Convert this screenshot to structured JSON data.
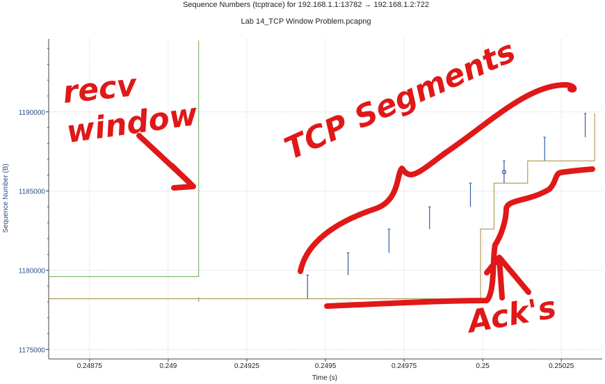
{
  "chart_data": {
    "type": "line",
    "title": "Sequence Numbers (tcptrace) for 192.168.1.1:13782 → 192.168.1.2:722",
    "subtitle": "Lab 14_TCP Window Problem.pcapng",
    "xlabel": "Time (s)",
    "ylabel": "Sequence Number (B)",
    "xlim": [
      0.24862,
      0.25038
    ],
    "ylim": [
      1174400,
      1194600
    ],
    "x_ticks": [
      0.24875,
      0.249,
      0.24925,
      0.2495,
      0.24975,
      0.25,
      0.25025
    ],
    "x_tick_labels": [
      "0.24875",
      "0.249",
      "0.24925",
      "0.2495",
      "0.24975",
      "0.25",
      "0.25025"
    ],
    "y_ticks": [
      1175000,
      1180000,
      1185000,
      1190000
    ],
    "y_tick_labels": [
      "1175000",
      "1180000",
      "1185000",
      "1190000"
    ],
    "grid": true,
    "colors": {
      "segments": "#2f5f9e",
      "receive_window": "#6aa84f",
      "acks": "#a08a3c",
      "annotation": "#e01818"
    },
    "series": [
      {
        "name": "",
        "kind": "segments",
        "points": [
          {
            "x": 0.249443,
            "y0": 1178200,
            "y1": 1179700
          },
          {
            "x": 0.249572,
            "y0": 1179700,
            "y1": 1181100
          },
          {
            "x": 0.249702,
            "y0": 1181100,
            "y1": 1182600
          },
          {
            "x": 0.249831,
            "y0": 1182600,
            "y1": 1184000
          },
          {
            "x": 0.249961,
            "y0": 1184000,
            "y1": 1185500
          },
          {
            "x": 0.250068,
            "y0": 1185500,
            "y1": 1186900
          },
          {
            "x": 0.250197,
            "y0": 1186900,
            "y1": 1188400
          },
          {
            "x": 0.250326,
            "y0": 1188400,
            "y1": 1189900
          }
        ],
        "marker": {
          "x": 0.250068,
          "y": 1186200
        }
      },
      {
        "name": "",
        "kind": "receive_window",
        "steps": [
          {
            "x": 0.24862,
            "y": 1179600
          },
          {
            "x": 0.249097,
            "y": 1179600
          },
          {
            "x": 0.249097,
            "y": 1194500
          }
        ]
      },
      {
        "name": "",
        "kind": "acks",
        "steps": [
          {
            "x": 0.24862,
            "y": 1178200
          },
          {
            "x": 0.249993,
            "y": 1178200
          },
          {
            "x": 0.249993,
            "y": 1182600
          },
          {
            "x": 0.250036,
            "y": 1182600
          },
          {
            "x": 0.250036,
            "y": 1185500
          },
          {
            "x": 0.250143,
            "y": 1185500
          },
          {
            "x": 0.250143,
            "y": 1186900
          },
          {
            "x": 0.250356,
            "y": 1186900
          },
          {
            "x": 0.250356,
            "y": 1189900
          }
        ],
        "tick_at": {
          "x": 0.249097,
          "y0": 1178000,
          "y1": 1178300
        }
      }
    ],
    "annotations": [
      {
        "text": "recv",
        "id": "recv"
      },
      {
        "text": "window",
        "id": "window"
      },
      {
        "text": "TCP Segments",
        "id": "tcp-segments"
      },
      {
        "text": "Ack's",
        "id": "acks"
      }
    ]
  }
}
